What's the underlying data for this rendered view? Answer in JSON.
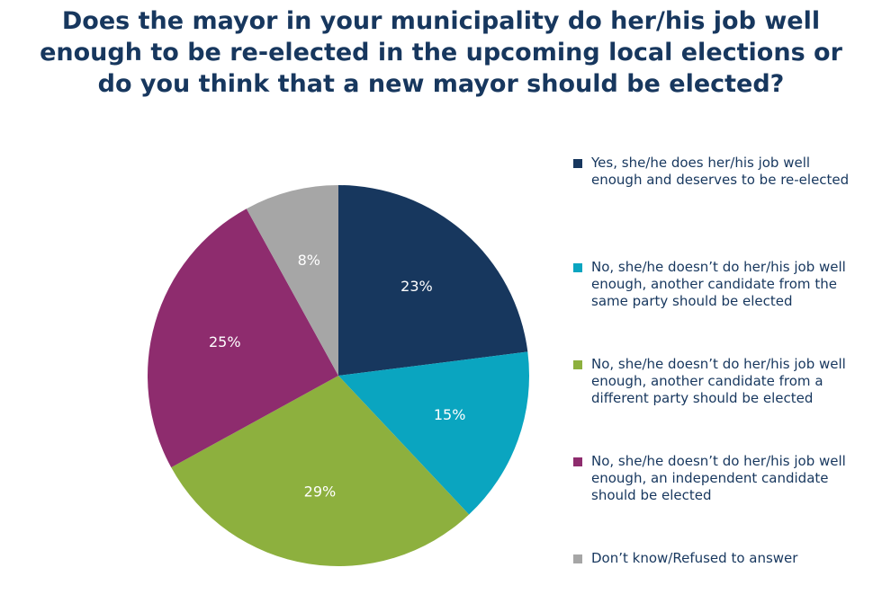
{
  "title_lines": [
    "Does the mayor in your municipality do her/his job well",
    "enough to be re-elected in the upcoming local elections or",
    "do you think that a new mayor should be elected?"
  ],
  "chart_data": {
    "type": "pie",
    "title": "Does the mayor in your municipality do her/his job well enough to be re-elected in the upcoming local elections or do you think that a new mayor should be elected?",
    "legend_position": "right",
    "start_angle": "12 o'clock",
    "direction": "clockwise",
    "slices": [
      {
        "label": "Yes, she/he does her/his job well enough and deserves to be re-elected",
        "value": 23,
        "value_label": "23%",
        "color": "#17375e"
      },
      {
        "label": "No, she/he doesn’t do her/his job well enough, another candidate from the same party should be elected",
        "value": 15,
        "value_label": "15%",
        "color": "#0aa5c0"
      },
      {
        "label": "No, she/he doesn’t do her/his job well enough, another candidate from a different party should be elected",
        "value": 29,
        "value_label": "29%",
        "color": "#8db03e"
      },
      {
        "label": "No, she/he doesn’t do her/his job well enough, an independent candidate should be elected",
        "value": 25,
        "value_label": "25%",
        "color": "#8e2c6e"
      },
      {
        "label": "Don’t know/Refused to answer",
        "value": 8,
        "value_label": "8%",
        "color": "#a6a6a6"
      }
    ]
  }
}
